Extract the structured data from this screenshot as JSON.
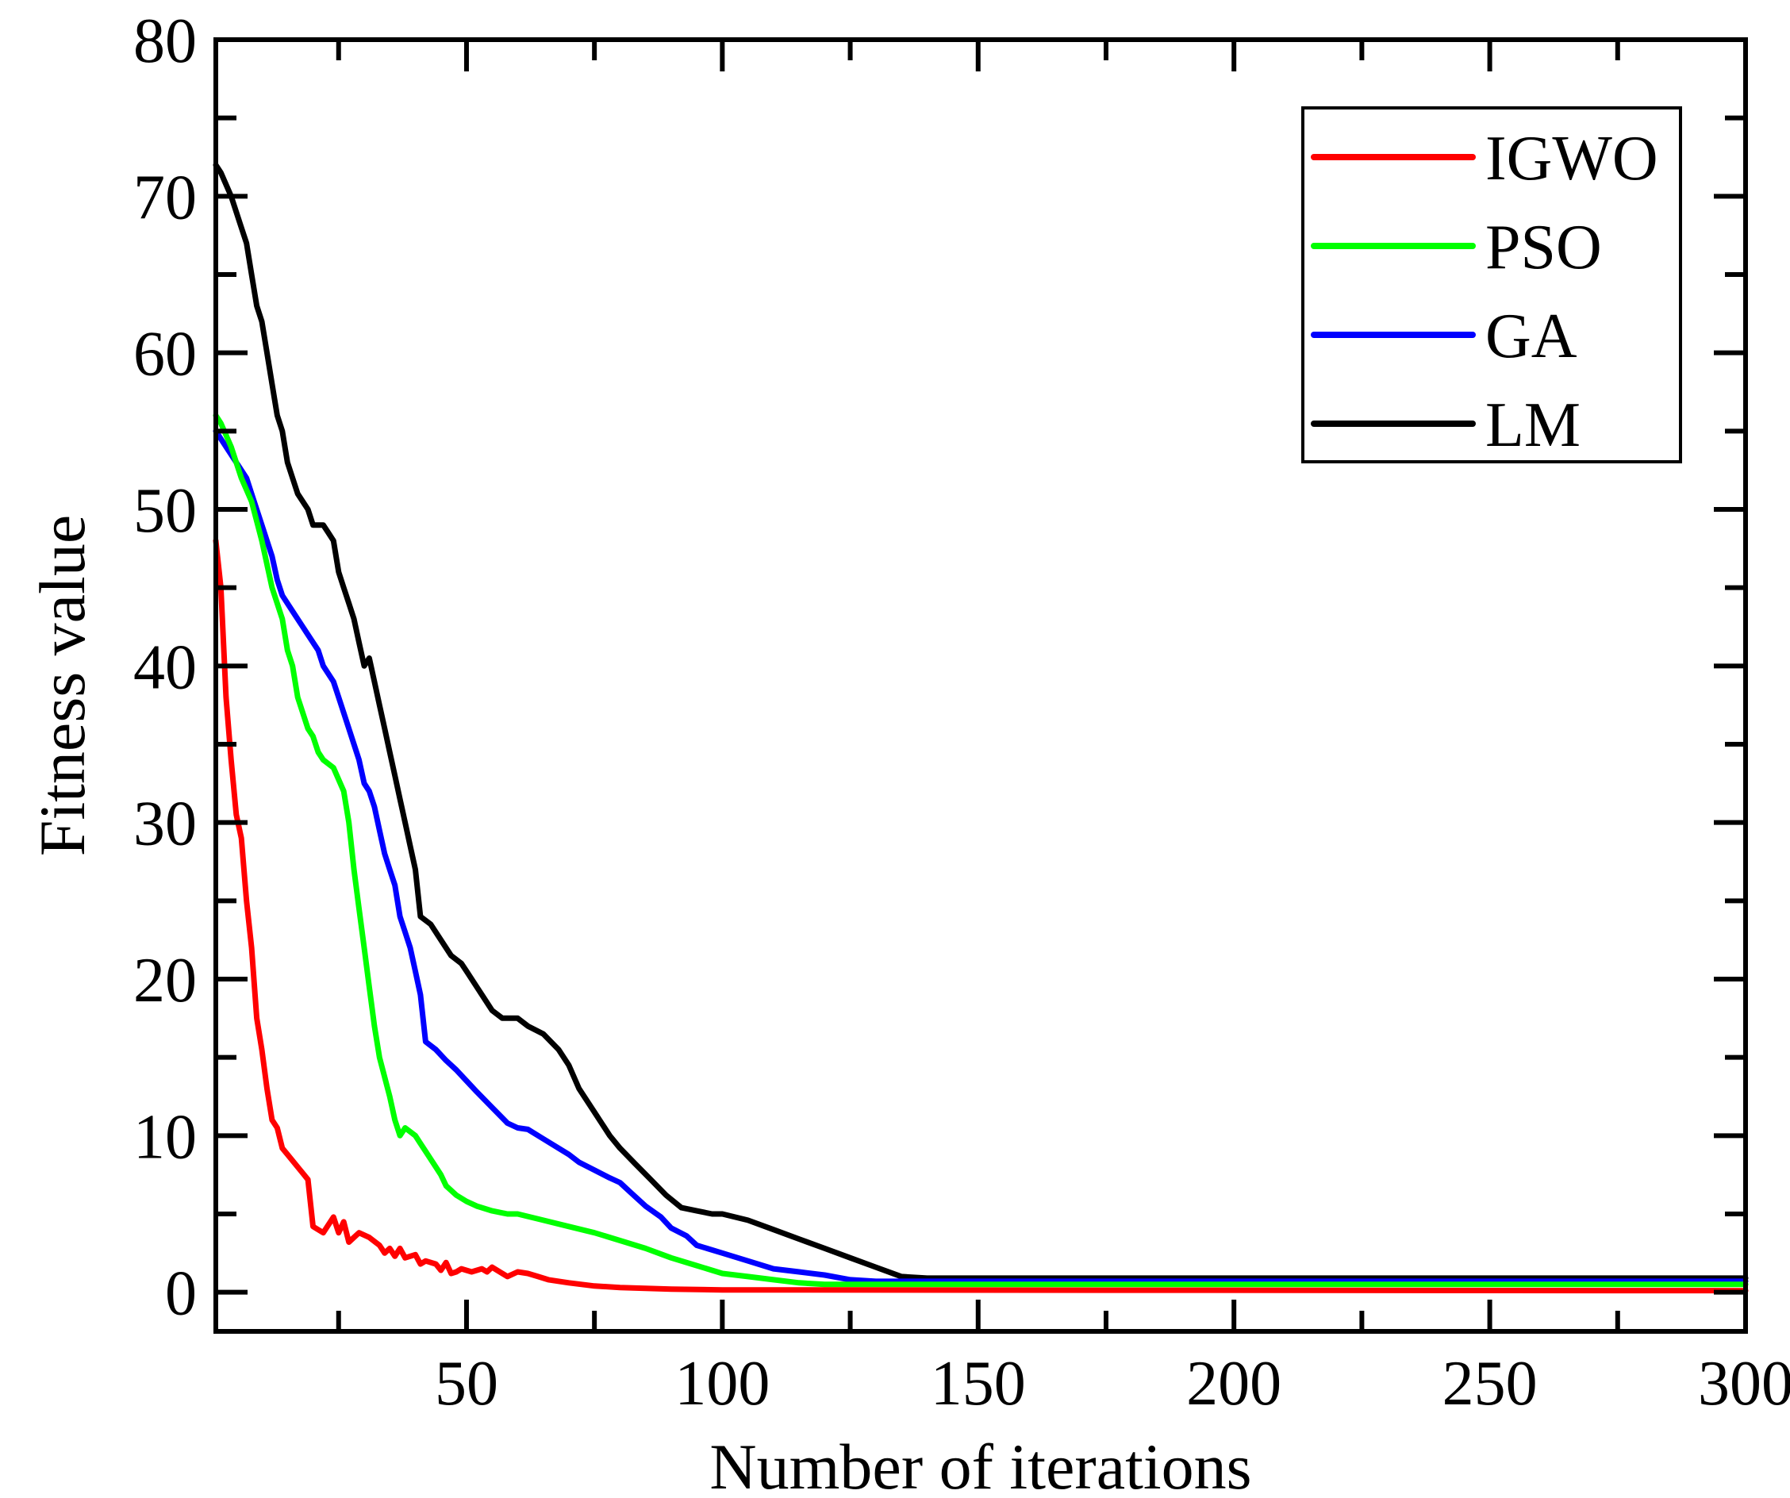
{
  "chart_data": {
    "type": "line",
    "title": "",
    "xlabel": "Number of iterations",
    "ylabel": "Fitness value",
    "xlim": [
      1,
      300
    ],
    "ylim": [
      -2.5,
      80
    ],
    "xticks": [
      50,
      100,
      150,
      200,
      250,
      300
    ],
    "xtick_labels": [
      "50",
      "100",
      "150",
      "200",
      "250",
      "300"
    ],
    "yticks": [
      0,
      10,
      20,
      30,
      40,
      50,
      60,
      70,
      80
    ],
    "ytick_labels": [
      "0",
      "10",
      "20",
      "30",
      "40",
      "50",
      "60",
      "70",
      "80"
    ],
    "grid": false,
    "legend_position": "top-right",
    "series": [
      {
        "name": "IGWO",
        "color": "#ff0000",
        "points": [
          [
            1,
            48
          ],
          [
            2,
            45
          ],
          [
            3,
            38
          ],
          [
            4,
            34
          ],
          [
            5,
            30.5
          ],
          [
            6,
            29
          ],
          [
            7,
            25
          ],
          [
            8,
            22
          ],
          [
            9,
            17.5
          ],
          [
            10,
            15.5
          ],
          [
            11,
            13
          ],
          [
            12,
            11
          ],
          [
            13,
            10.5
          ],
          [
            14,
            9.2
          ],
          [
            15,
            8.8
          ],
          [
            17,
            8
          ],
          [
            19,
            7.2
          ],
          [
            20,
            4.2
          ],
          [
            22,
            3.8
          ],
          [
            24,
            4.8
          ],
          [
            25,
            3.8
          ],
          [
            26,
            4.5
          ],
          [
            27,
            3.2
          ],
          [
            29,
            3.8
          ],
          [
            31,
            3.5
          ],
          [
            33,
            3
          ],
          [
            34,
            2.5
          ],
          [
            35,
            2.8
          ],
          [
            36,
            2.3
          ],
          [
            37,
            2.8
          ],
          [
            38,
            2.2
          ],
          [
            40,
            2.4
          ],
          [
            41,
            1.8
          ],
          [
            42,
            2
          ],
          [
            44,
            1.8
          ],
          [
            45,
            1.4
          ],
          [
            46,
            1.9
          ],
          [
            47,
            1.2
          ],
          [
            48,
            1.3
          ],
          [
            49,
            1.5
          ],
          [
            51,
            1.3
          ],
          [
            53,
            1.5
          ],
          [
            54,
            1.3
          ],
          [
            55,
            1.6
          ],
          [
            57,
            1.2
          ],
          [
            58,
            1
          ],
          [
            60,
            1.3
          ],
          [
            62,
            1.2
          ],
          [
            64,
            1
          ],
          [
            66,
            0.8
          ],
          [
            70,
            0.6
          ],
          [
            75,
            0.4
          ],
          [
            80,
            0.3
          ],
          [
            90,
            0.2
          ],
          [
            100,
            0.15
          ],
          [
            300,
            0.1
          ]
        ]
      },
      {
        "name": "PSO",
        "color": "#00ff00",
        "points": [
          [
            1,
            56
          ],
          [
            2,
            55.5
          ],
          [
            4,
            54
          ],
          [
            6,
            52
          ],
          [
            8,
            50.5
          ],
          [
            10,
            48
          ],
          [
            12,
            45
          ],
          [
            14,
            43
          ],
          [
            15,
            41
          ],
          [
            16,
            40
          ],
          [
            17,
            38
          ],
          [
            19,
            36
          ],
          [
            20,
            35.5
          ],
          [
            21,
            34.5
          ],
          [
            22,
            34
          ],
          [
            24,
            33.5
          ],
          [
            26,
            32
          ],
          [
            27,
            30
          ],
          [
            28,
            27
          ],
          [
            29,
            24.5
          ],
          [
            30,
            22
          ],
          [
            31,
            19.5
          ],
          [
            32,
            17
          ],
          [
            33,
            15
          ],
          [
            35,
            12.5
          ],
          [
            36,
            11
          ],
          [
            37,
            10
          ],
          [
            38,
            10.5
          ],
          [
            40,
            10
          ],
          [
            41,
            9.5
          ],
          [
            42,
            9
          ],
          [
            44,
            8
          ],
          [
            45,
            7.5
          ],
          [
            46,
            6.8
          ],
          [
            48,
            6.2
          ],
          [
            50,
            5.8
          ],
          [
            52,
            5.5
          ],
          [
            55,
            5.2
          ],
          [
            58,
            5
          ],
          [
            60,
            5
          ],
          [
            65,
            4.6
          ],
          [
            70,
            4.2
          ],
          [
            75,
            3.8
          ],
          [
            80,
            3.3
          ],
          [
            85,
            2.8
          ],
          [
            90,
            2.2
          ],
          [
            95,
            1.7
          ],
          [
            100,
            1.2
          ],
          [
            105,
            1
          ],
          [
            110,
            0.8
          ],
          [
            115,
            0.6
          ],
          [
            120,
            0.5
          ],
          [
            130,
            0.5
          ],
          [
            300,
            0.5
          ]
        ]
      },
      {
        "name": "GA",
        "color": "#0000ff",
        "points": [
          [
            1,
            55
          ],
          [
            3,
            54
          ],
          [
            5,
            53
          ],
          [
            7,
            52
          ],
          [
            8,
            51
          ],
          [
            10,
            49
          ],
          [
            12,
            47
          ],
          [
            13,
            45.5
          ],
          [
            14,
            44.5
          ],
          [
            16,
            43.5
          ],
          [
            18,
            42.5
          ],
          [
            20,
            41.5
          ],
          [
            21,
            41
          ],
          [
            22,
            40
          ],
          [
            24,
            39
          ],
          [
            25,
            38
          ],
          [
            27,
            36
          ],
          [
            28,
            35
          ],
          [
            29,
            34
          ],
          [
            30,
            32.5
          ],
          [
            31,
            32
          ],
          [
            32,
            31
          ],
          [
            33,
            29.5
          ],
          [
            34,
            28
          ],
          [
            35,
            27
          ],
          [
            36,
            26
          ],
          [
            37,
            24
          ],
          [
            38,
            23
          ],
          [
            39,
            22
          ],
          [
            40,
            20.5
          ],
          [
            41,
            19
          ],
          [
            42,
            16
          ],
          [
            44,
            15.5
          ],
          [
            46,
            14.8
          ],
          [
            48,
            14.2
          ],
          [
            50,
            13.5
          ],
          [
            52,
            12.8
          ],
          [
            55,
            11.8
          ],
          [
            58,
            10.8
          ],
          [
            60,
            10.5
          ],
          [
            62,
            10.4
          ],
          [
            65,
            9.8
          ],
          [
            68,
            9.2
          ],
          [
            70,
            8.8
          ],
          [
            72,
            8.3
          ],
          [
            75,
            7.8
          ],
          [
            78,
            7.3
          ],
          [
            80,
            7
          ],
          [
            82,
            6.4
          ],
          [
            85,
            5.5
          ],
          [
            88,
            4.8
          ],
          [
            90,
            4.1
          ],
          [
            93,
            3.6
          ],
          [
            95,
            3
          ],
          [
            100,
            2.5
          ],
          [
            105,
            2
          ],
          [
            110,
            1.5
          ],
          [
            115,
            1.3
          ],
          [
            120,
            1.1
          ],
          [
            125,
            0.8
          ],
          [
            130,
            0.7
          ],
          [
            300,
            0.7
          ]
        ]
      },
      {
        "name": "LM",
        "color": "#000000",
        "points": [
          [
            1,
            72
          ],
          [
            2,
            71.5
          ],
          [
            4,
            70
          ],
          [
            6,
            68
          ],
          [
            7,
            67
          ],
          [
            8,
            65
          ],
          [
            9,
            63
          ],
          [
            10,
            62
          ],
          [
            11,
            60
          ],
          [
            12,
            58
          ],
          [
            13,
            56
          ],
          [
            14,
            55
          ],
          [
            15,
            53
          ],
          [
            17,
            51
          ],
          [
            19,
            50
          ],
          [
            20,
            49
          ],
          [
            22,
            49
          ],
          [
            23,
            48.5
          ],
          [
            24,
            48
          ],
          [
            25,
            46
          ],
          [
            26,
            45
          ],
          [
            27,
            44
          ],
          [
            28,
            43
          ],
          [
            29,
            41.5
          ],
          [
            30,
            40
          ],
          [
            31,
            40.5
          ],
          [
            32,
            39
          ],
          [
            33,
            37.5
          ],
          [
            34,
            36
          ],
          [
            35,
            34.5
          ],
          [
            36,
            33
          ],
          [
            37,
            31.5
          ],
          [
            38,
            30
          ],
          [
            39,
            28.5
          ],
          [
            40,
            27
          ],
          [
            41,
            24
          ],
          [
            43,
            23.5
          ],
          [
            45,
            22.5
          ],
          [
            47,
            21.5
          ],
          [
            49,
            21
          ],
          [
            50,
            20.5
          ],
          [
            52,
            19.5
          ],
          [
            53,
            19
          ],
          [
            55,
            18
          ],
          [
            57,
            17.5
          ],
          [
            60,
            17.5
          ],
          [
            62,
            17
          ],
          [
            65,
            16.5
          ],
          [
            68,
            15.5
          ],
          [
            70,
            14.5
          ],
          [
            72,
            13
          ],
          [
            75,
            11.5
          ],
          [
            78,
            10
          ],
          [
            80,
            9.2
          ],
          [
            83,
            8.2
          ],
          [
            86,
            7.2
          ],
          [
            89,
            6.2
          ],
          [
            92,
            5.4
          ],
          [
            95,
            5.2
          ],
          [
            98,
            5
          ],
          [
            100,
            5
          ],
          [
            105,
            4.6
          ],
          [
            110,
            4
          ],
          [
            115,
            3.4
          ],
          [
            120,
            2.8
          ],
          [
            125,
            2.2
          ],
          [
            130,
            1.6
          ],
          [
            135,
            1
          ],
          [
            140,
            0.9
          ],
          [
            300,
            0.9
          ]
        ]
      }
    ]
  }
}
